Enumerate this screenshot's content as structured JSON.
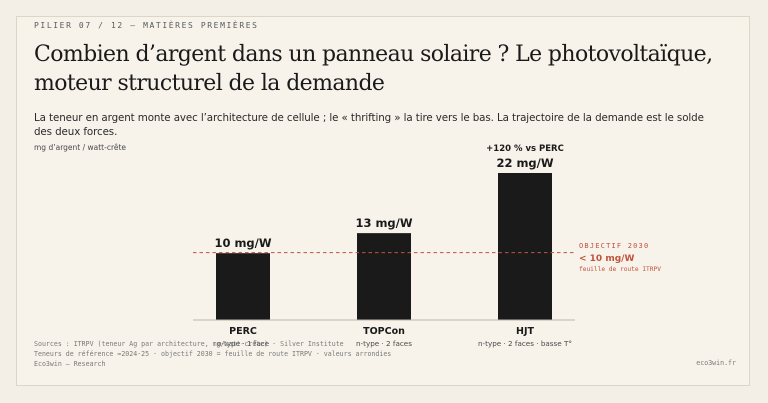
{
  "header": {
    "eyebrow": "PILIER 07 / 12 — MATIÈRES PREMIÈRES",
    "title": "Combien d’argent dans un panneau solaire ? Le photovoltaïque, moteur structurel de la demande",
    "subtitle": "La teneur en argent monte avec l’architecture de cellule ; le « thrifting » la tire vers le bas. La trajectoire de la demande est le solde des deux forces."
  },
  "chart_data": {
    "type": "bar",
    "ylabel": "mg d’argent / watt-crête",
    "categories": [
      "PERC",
      "TOPCon",
      "HJT"
    ],
    "category_notes": [
      "p-type · 1 face",
      "n-type · 2 faces",
      "n-type · 2 faces · basse T°"
    ],
    "values": [
      10,
      13,
      22
    ],
    "value_labels": [
      "10 mg/W",
      "13 mg/W",
      "22 mg/W"
    ],
    "annotation": "+120 % vs PERC",
    "ylim": [
      0,
      22
    ],
    "grid": false,
    "reference_line": {
      "value": 10,
      "label": "OBJECTIF 2030",
      "value_label": "< 10 mg/W",
      "note": "feuille de route ITRPV"
    }
  },
  "colors": {
    "bar": "#1a1a1a",
    "accent": "#c0533d",
    "background": "#f7f3ea"
  },
  "footer": {
    "line1": "Sources : ITRPV (teneur Ag par architecture, mg/watt-crête) · Silver Institute",
    "line2": "Teneurs de référence ≈2024-25 · objectif 2030 = feuille de route ITRPV · valeurs arrondies",
    "line3": "Eco3win — Research",
    "site": "eco3win.fr"
  }
}
